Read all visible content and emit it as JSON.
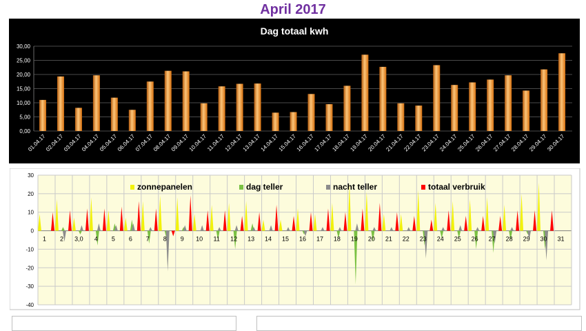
{
  "page_title": "April 2017",
  "chart_data": [
    {
      "type": "bar",
      "title": "Dag totaal kwh",
      "xlabel": "",
      "ylabel": "",
      "ylim": [
        0,
        30
      ],
      "yticks": [
        "0,00",
        "5,00",
        "10,00",
        "15,00",
        "20,00",
        "25,00",
        "30,00"
      ],
      "grid": true,
      "categories": [
        "01.04.17",
        "02.04.17",
        "03.04.17",
        "04.04.17",
        "05.04.17",
        "06.04.17",
        "07.04.17",
        "08.04.17",
        "09.04.17",
        "10.04.17",
        "11.04.17",
        "12.04.17",
        "13.04.17",
        "14.04.17",
        "15.04.17",
        "16.04.17",
        "17.04.17",
        "18.04.17",
        "19.04.17",
        "20.04.17",
        "21.04.17",
        "22.04.17",
        "23.04.17",
        "24.04.17",
        "25.04.17",
        "26.04.17",
        "27.04.17",
        "28.04.17",
        "29.04.17",
        "30.04.17"
      ],
      "values": [
        11.0,
        19.3,
        8.2,
        19.7,
        11.8,
        7.5,
        17.5,
        21.3,
        21.1,
        9.8,
        15.8,
        16.7,
        16.8,
        6.5,
        6.7,
        13.1,
        9.5,
        16.0,
        27.0,
        22.7,
        9.8,
        9.0,
        23.3,
        16.3,
        17.2,
        18.2,
        19.7,
        14.3,
        21.8,
        27.5
      ],
      "colors": {
        "background": "#000000",
        "bar": "#f39a2c",
        "bar_dark": "#b55b0c",
        "bar_light": "#fcc57a",
        "text": "#ffffff"
      }
    },
    {
      "type": "bar",
      "title": "",
      "xlabel": "",
      "ylabel": "",
      "ylim": [
        -40,
        30
      ],
      "yticks": [
        "-40",
        "-30",
        "-20",
        "-10",
        "0",
        "10",
        "20",
        "30"
      ],
      "grid": true,
      "legend_position": "top",
      "categories": [
        "1",
        "2",
        "3,0",
        "4",
        "5",
        "6",
        "7",
        "8",
        "9",
        "10",
        "11",
        "12",
        "13",
        "14",
        "15",
        "16",
        "17",
        "18",
        "19",
        "20",
        "21",
        "22",
        "23",
        "24",
        "25",
        "26",
        "27",
        "28",
        "29",
        "30",
        "31"
      ],
      "series": [
        {
          "name": "zonnepanelen",
          "color": "#f2f20a",
          "values": [
            9,
            17,
            7,
            18,
            11,
            7,
            16,
            19,
            18,
            9,
            14,
            15,
            16,
            6,
            6,
            12,
            9,
            15,
            25,
            21,
            9,
            9,
            22,
            15,
            16,
            17,
            18,
            14,
            20,
            26,
            0
          ]
        },
        {
          "name": "dag teller",
          "color": "#7ac143",
          "values": [
            0,
            2,
            -2,
            -8,
            4,
            6,
            -7,
            -4,
            2,
            0,
            -5,
            -10,
            4,
            0,
            0,
            -2,
            0,
            -4,
            -29,
            -6,
            0,
            0,
            -8,
            -4,
            -4,
            -10,
            -12,
            -5,
            -2,
            -10,
            0
          ]
        },
        {
          "name": "nacht teller",
          "color": "#8c8c8c",
          "values": [
            0,
            -6,
            3,
            4,
            3,
            4,
            2,
            -22,
            3,
            3,
            2,
            3,
            2,
            3,
            2,
            -3,
            2,
            2,
            4,
            2,
            2,
            2,
            -15,
            2,
            3,
            2,
            -7,
            2,
            -5,
            -16,
            0
          ]
        },
        {
          "name": "totaal verbruik",
          "color": "#ff0000",
          "values": [
            10,
            11,
            12,
            12,
            13,
            16,
            12,
            -3,
            19,
            11,
            11,
            8,
            10,
            14,
            8,
            10,
            12,
            10,
            12,
            15,
            10,
            8,
            6,
            11,
            8,
            8,
            8,
            11,
            11,
            11,
            0
          ]
        }
      ],
      "colors": {
        "plot_background": "#fdfcdc",
        "grid": "#b8b8b8",
        "axis_text": "#000000"
      }
    }
  ]
}
